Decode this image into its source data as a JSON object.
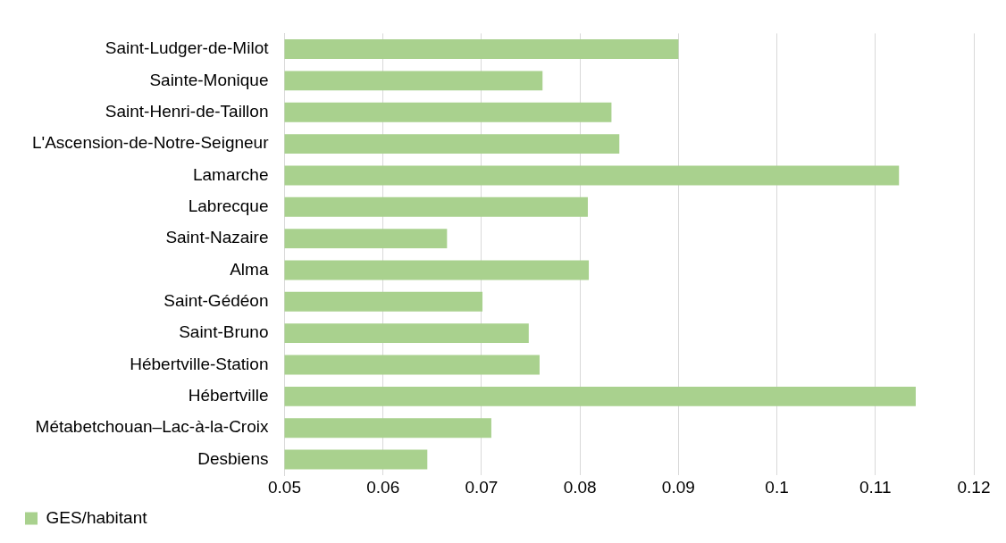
{
  "chart_data": {
    "type": "bar",
    "orientation": "horizontal",
    "categories": [
      "Saint-Ludger-de-Milot",
      "Sainte-Monique",
      "Saint-Henri-de-Taillon",
      "L'Ascension-de-Notre-Seigneur",
      "Lamarche",
      "Labrecque",
      "Saint-Nazaire",
      "Alma",
      "Saint-Gédéon",
      "Saint-Bruno",
      "Hébertville-Station",
      "Hébertville",
      "Métabetchouan–Lac-à-la-Croix",
      "Desbiens"
    ],
    "series": [
      {
        "name": "GES/habitant",
        "color": "#a9d18e",
        "values": [
          0.09,
          0.0762,
          0.0832,
          0.084,
          0.1124,
          0.0808,
          0.0665,
          0.0809,
          0.0701,
          0.0748,
          0.0759,
          0.1141,
          0.071,
          0.0645
        ]
      }
    ],
    "xlim": [
      0.05,
      0.12
    ],
    "xticks": [
      0.05,
      0.06,
      0.07,
      0.08,
      0.09,
      0.1,
      0.11,
      0.12
    ],
    "grid": "x",
    "legend": "bottom left"
  }
}
